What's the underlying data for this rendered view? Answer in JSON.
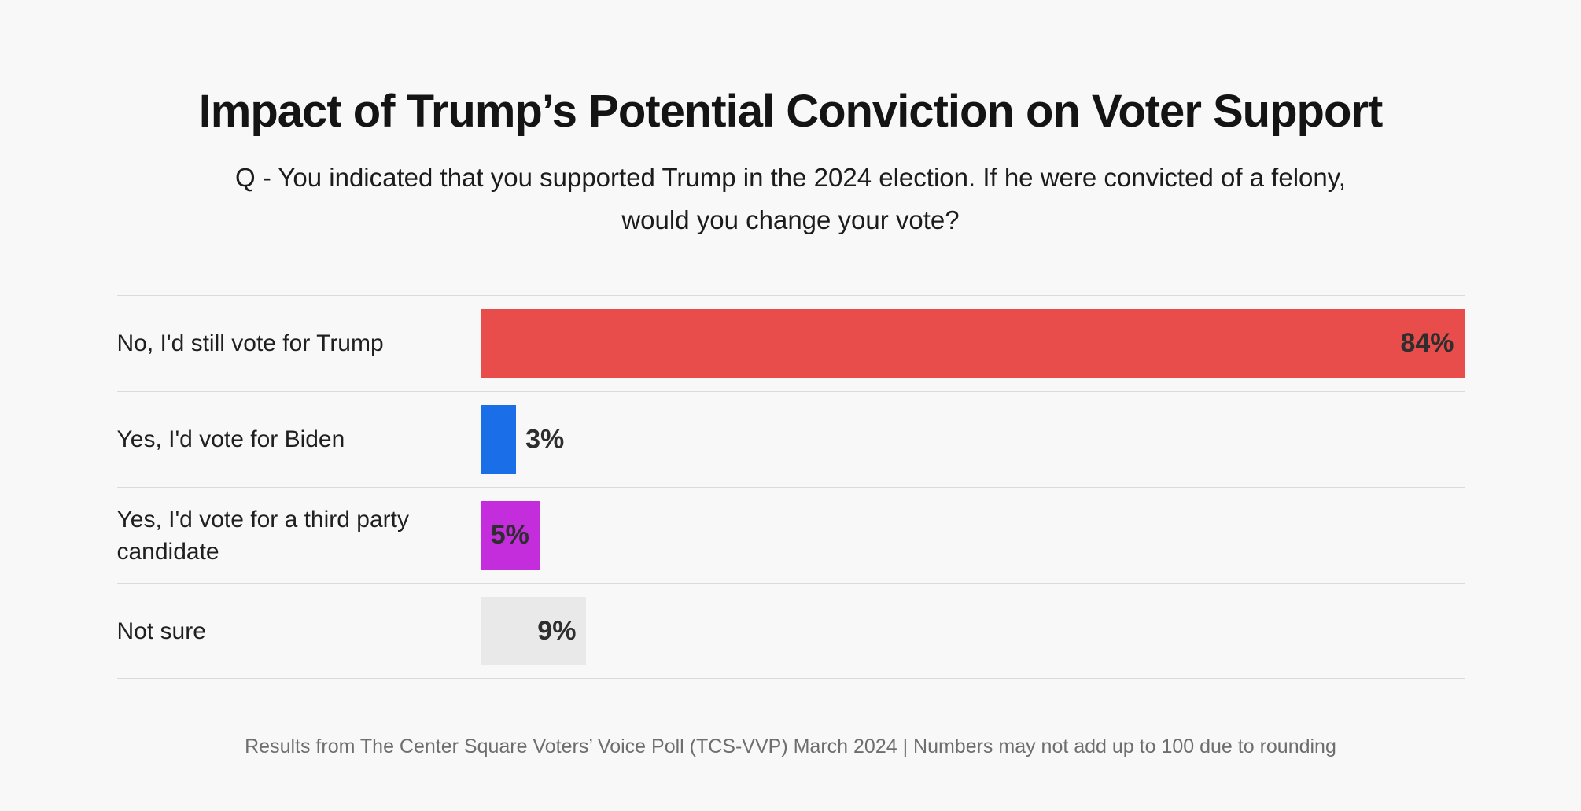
{
  "page": {
    "background_color": "#f8f8f8"
  },
  "header": {
    "title": "Impact of Trump’s Potential Conviction on Voter Support",
    "subtitle_lines": [
      "Q - You indicated that you supported Trump in the 2024 election. If he were convicted of a felony,",
      "would you change your vote?"
    ]
  },
  "chart_data": {
    "type": "bar",
    "orientation": "horizontal",
    "title": "Impact of Trump’s Potential Conviction on Voter Support",
    "question": "Q - You indicated that you supported Trump in the 2024 election. If he were convicted of a felony, would you change your vote?",
    "categories": [
      "No, I'd still vote for Trump",
      "Yes, I'd vote for Biden",
      "Yes, I'd vote for a third party candidate",
      "Not sure"
    ],
    "values": [
      84,
      3,
      5,
      9
    ],
    "value_labels": [
      "84%",
      "3%",
      "5%",
      "9%"
    ],
    "colors": [
      "#e94d4b",
      "#1a6fe8",
      "#c32ddb",
      "#e9e9e9"
    ],
    "unit": "%",
    "xlim": [
      0,
      84
    ],
    "grid": false,
    "row_dividers": true,
    "divider_color": "#dbdbdb",
    "value_label_color": "#2e2e2e",
    "legend": "none"
  },
  "footer": {
    "text": "Results from The Center Square Voters’ Voice Poll (TCS-VVP) March 2024 | Numbers may not add up to 100 due to rounding"
  }
}
